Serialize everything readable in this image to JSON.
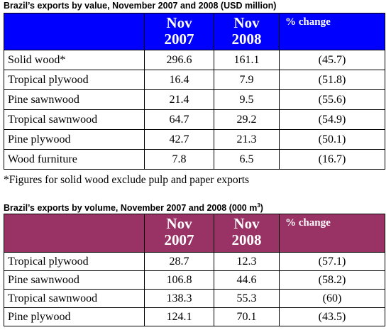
{
  "value_table": {
    "title": "Brazil’s exports by value, November 2007 and 2008 (USD million)",
    "headers": {
      "col1": "Nov",
      "col1b": "2007",
      "col2": "Nov",
      "col2b": "2008",
      "col3": "% change"
    },
    "rows": [
      {
        "label": "Solid wood*",
        "v2007": "296.6",
        "v2008": "161.1",
        "change": "(45.7)"
      },
      {
        "label": "Tropical plywood",
        "v2007": "16.4",
        "v2008": "7.9",
        "change": "(51.8)"
      },
      {
        "label": "Pine sawnwood",
        "v2007": "21.4",
        "v2008": "9.5",
        "change": "(55.6)"
      },
      {
        "label": "Tropical sawnwood",
        "v2007": "64.7",
        "v2008": "29.2",
        "change": "(54.9)"
      },
      {
        "label": "Pine plywood",
        "v2007": "42.7",
        "v2008": "21.3",
        "change": "(50.1)"
      },
      {
        "label": "Wood furniture",
        "v2007": "7.8",
        "v2008": "6.5",
        "change": "(16.7)"
      }
    ],
    "footnote": "*Figures for solid wood exclude pulp and paper exports",
    "header_color": "#0000ff"
  },
  "volume_table": {
    "title_main": "Brazil’s exports by volume, November 2007 and 2008 (000 m",
    "title_sup": "3",
    "title_end": ")",
    "headers": {
      "col1": "Nov",
      "col1b": "2007",
      "col2": "Nov",
      "col2b": "2008",
      "col3": "% change"
    },
    "rows": [
      {
        "label": "Tropical plywood",
        "v2007": "28.7",
        "v2008": "12.3",
        "change": "(57.1)"
      },
      {
        "label": "Pine sawnwood",
        "v2007": "106.8",
        "v2008": "44.6",
        "change": "(58.2)"
      },
      {
        "label": "Tropical sawnwood",
        "v2007": "138.3",
        "v2008": "55.3",
        "change": "(60)"
      },
      {
        "label": "Pine plywood",
        "v2007": "124.1",
        "v2008": "70.1",
        "change": "(43.5)"
      }
    ],
    "header_color": "#993366"
  }
}
